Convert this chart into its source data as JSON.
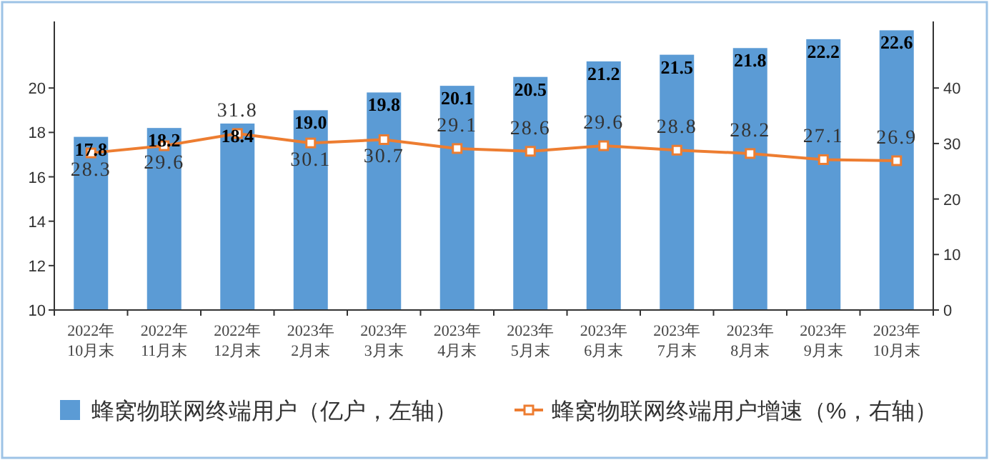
{
  "chart_data": {
    "type": "bar",
    "categories": [
      "2022年\n10月末",
      "2022年\n11月末",
      "2022年\n12月末",
      "2023年\n2月末",
      "2023年\n3月末",
      "2023年\n4月末",
      "2023年\n5月末",
      "2023年\n6月末",
      "2023年\n7月末",
      "2023年\n8月末",
      "2023年\n9月末",
      "2023年\n10月末"
    ],
    "series": [
      {
        "name": "蜂窝物联网终端用户（亿户，左轴）",
        "color": "#5b9bd5",
        "values": [
          17.8,
          18.2,
          18.4,
          19.0,
          19.8,
          20.1,
          20.5,
          21.2,
          21.5,
          21.8,
          22.2,
          22.6
        ],
        "value_labels": [
          "17.8",
          "18.2",
          "18.4",
          "19.0",
          "19.8",
          "20.1",
          "20.5",
          "21.2",
          "21.5",
          "21.8",
          "22.2",
          "22.6"
        ]
      },
      {
        "name": "蜂窝物联网终端用户增速（%，右轴）",
        "type": "line",
        "axis": "y2",
        "color": "#ed7d31",
        "marker": "square",
        "line_style": "solid",
        "values": [
          28.3,
          29.6,
          31.8,
          30.1,
          30.7,
          29.1,
          28.6,
          29.6,
          28.8,
          28.2,
          27.1,
          26.9
        ],
        "value_labels": [
          "28.3",
          "29.6",
          "31.8",
          "30.1",
          "30.7",
          "29.1",
          "28.6",
          "29.6",
          "28.8",
          "28.2",
          "27.1",
          "26.9"
        ]
      }
    ],
    "ylim": [
      10,
      23
    ],
    "yticks": [
      10,
      12,
      14,
      16,
      18,
      20
    ],
    "y2lim": [
      0,
      52
    ],
    "y2ticks": [
      0,
      10,
      20,
      30,
      40
    ],
    "grid": false,
    "legend": "bottom"
  }
}
